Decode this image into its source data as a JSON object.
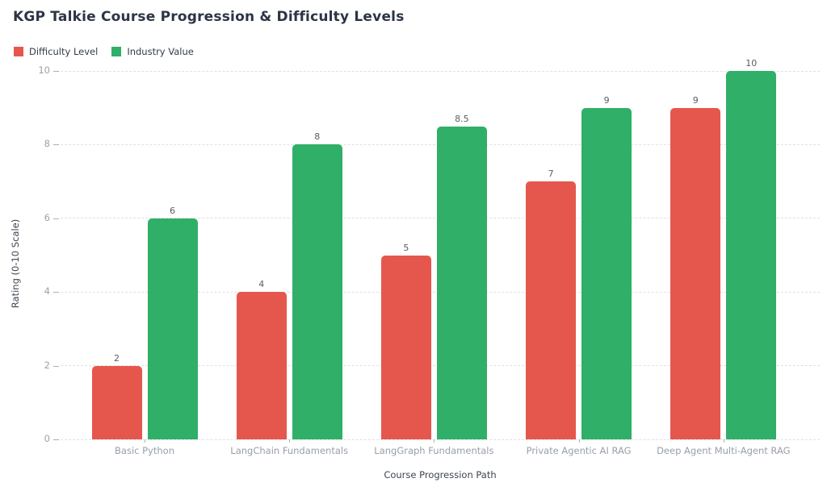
{
  "chart_data": {
    "type": "bar",
    "title": "KGP Talkie Course Progression & Difficulty Levels",
    "xlabel": "Course Progression Path",
    "ylabel": "Rating (0-10 Scale)",
    "categories": [
      "Basic Python",
      "LangChain Fundamentals",
      "LangGraph Fundamentals",
      "Private Agentic AI RAG",
      "Deep Agent Multi-Agent RAG"
    ],
    "series": [
      {
        "name": "Difficulty Level",
        "color": "#e5574d",
        "values": [
          2,
          4,
          5,
          7,
          9
        ]
      },
      {
        "name": "Industry Value",
        "color": "#30af68",
        "values": [
          6,
          8,
          8.5,
          9,
          10
        ]
      }
    ],
    "ylim": [
      0,
      10
    ],
    "yticks": [
      0,
      2,
      4,
      6,
      8,
      10
    ],
    "grid": "horizontal-dashed",
    "gridline_color": "#e1e1e1",
    "legend_position": "top-left",
    "value_labels": true,
    "background_color": "#ffffff"
  }
}
